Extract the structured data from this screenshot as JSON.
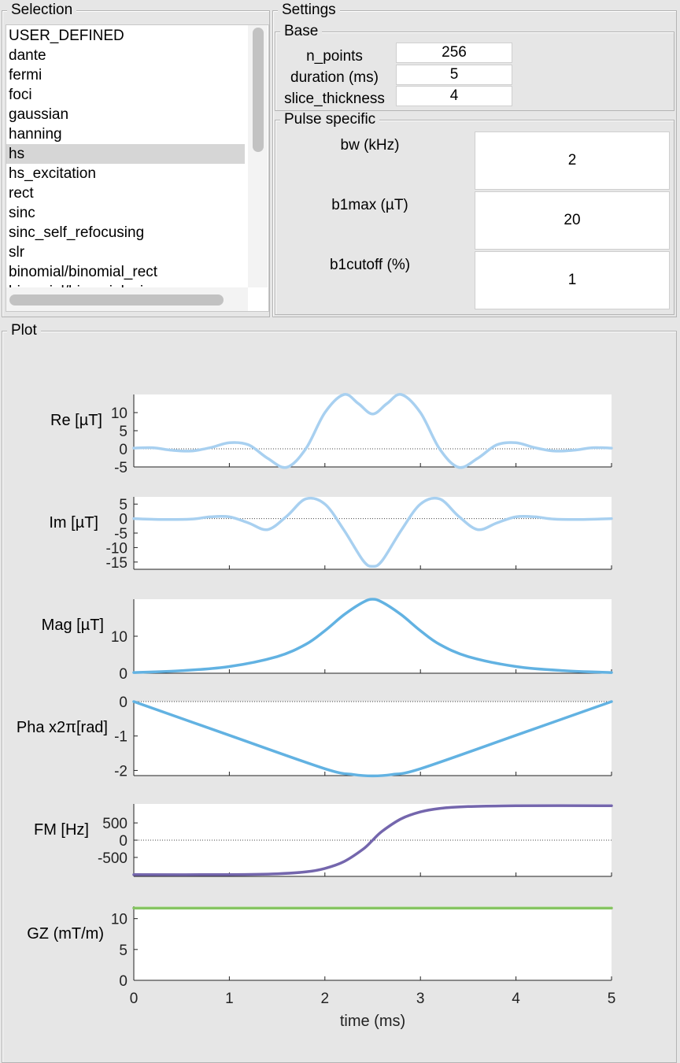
{
  "selection": {
    "title": "Selection",
    "items": [
      "USER_DEFINED",
      "dante",
      "fermi",
      "foci",
      "gaussian",
      "hanning",
      "hs",
      "hs_excitation",
      "rect",
      "sinc",
      "sinc_self_refocusing",
      "slr",
      "binomial/binomial_rect",
      "binomial/binomial_sinc"
    ],
    "selected": "hs"
  },
  "settings": {
    "title": "Settings",
    "base": {
      "title": "Base",
      "n_points_label": "n_points",
      "n_points": "256",
      "duration_label": "duration (ms)",
      "duration": "5",
      "slice_thickness_label": "slice_thickness",
      "slice_thickness": "4"
    },
    "pulse": {
      "title": "Pulse specific",
      "bw_label": "bw (kHz)",
      "bw": "2",
      "b1max_label": "b1max (µT)",
      "b1max": "20",
      "b1cutoff_label": "b1cutoff (%)",
      "b1cutoff": "1"
    }
  },
  "plot": {
    "title": "Plot",
    "xlabel": "time (ms)"
  },
  "colors": {
    "re_im": "#a8d0f0",
    "mag_pha": "#62b2e2",
    "fm": "#7466ad",
    "gz": "#86c462"
  },
  "chart_data": [
    {
      "type": "line",
      "ylabel": "Re [µT]",
      "xlim": [
        0,
        5
      ],
      "ylim": [
        -5,
        15
      ],
      "yticks": [
        -5,
        0,
        5,
        10
      ],
      "zero_line": true,
      "x": [
        0,
        0.2,
        0.4,
        0.6,
        0.8,
        1.0,
        1.2,
        1.4,
        1.6,
        1.8,
        2.0,
        2.2,
        2.35,
        2.5,
        2.65,
        2.8,
        3.0,
        3.2,
        3.4,
        3.6,
        3.8,
        4.0,
        4.2,
        4.4,
        4.6,
        4.8,
        5.0
      ],
      "values": [
        0.2,
        0.3,
        -0.4,
        -0.6,
        0.3,
        1.7,
        1.1,
        -2.6,
        -5.1,
        0.0,
        10.0,
        15.0,
        12.5,
        9.6,
        12.5,
        15.0,
        10.0,
        0.0,
        -5.1,
        -2.6,
        1.1,
        1.7,
        0.3,
        -0.6,
        -0.4,
        0.3,
        0.2
      ]
    },
    {
      "type": "line",
      "ylabel": "Im [µT]",
      "xlim": [
        0,
        5
      ],
      "ylim": [
        -17.5,
        7.5
      ],
      "yticks": [
        -15,
        -10,
        -5,
        0,
        5
      ],
      "zero_line": true,
      "x": [
        0,
        0.3,
        0.6,
        0.8,
        1.0,
        1.2,
        1.4,
        1.6,
        1.8,
        2.0,
        2.2,
        2.4,
        2.5,
        2.6,
        2.8,
        3.0,
        3.2,
        3.4,
        3.6,
        3.8,
        4.0,
        4.2,
        4.4,
        4.7,
        5.0
      ],
      "values": [
        0,
        -0.3,
        -0.2,
        0.6,
        0.6,
        -1.5,
        -3.8,
        0.8,
        6.8,
        5.0,
        -4.0,
        -14.5,
        -16.5,
        -14.5,
        -4.0,
        5.0,
        6.8,
        0.8,
        -3.8,
        -1.5,
        0.6,
        0.6,
        -0.2,
        -0.3,
        0
      ]
    },
    {
      "type": "line",
      "ylabel": "Mag [µT]",
      "xlim": [
        0,
        5
      ],
      "ylim": [
        0,
        20
      ],
      "yticks": [
        0,
        10
      ],
      "zero_line": false,
      "x": [
        0,
        0.5,
        1.0,
        1.5,
        1.8,
        2.0,
        2.2,
        2.4,
        2.5,
        2.6,
        2.8,
        3.0,
        3.2,
        3.5,
        4.0,
        4.5,
        5.0
      ],
      "values": [
        0.2,
        0.7,
        1.8,
        4.5,
        7.8,
        11.5,
        15.8,
        19.2,
        20,
        19.2,
        15.8,
        11.5,
        7.8,
        4.5,
        1.8,
        0.7,
        0.2
      ]
    },
    {
      "type": "line",
      "ylabel": "Pha x2π[rad]",
      "xlim": [
        0,
        5
      ],
      "ylim": [
        -2.15,
        0
      ],
      "yticks": [
        -2,
        -1,
        0
      ],
      "zero_line": true,
      "x": [
        0,
        1.0,
        2.0,
        2.3,
        2.5,
        2.7,
        3.0,
        4.0,
        5.0
      ],
      "values": [
        0,
        -0.98,
        -1.95,
        -2.12,
        -2.16,
        -2.12,
        -1.95,
        -0.98,
        0
      ]
    },
    {
      "type": "line",
      "ylabel": "FM [Hz]",
      "xlim": [
        0,
        5
      ],
      "ylim": [
        -1050,
        1050
      ],
      "yticks": [
        -500,
        0,
        500
      ],
      "zero_line": true,
      "x": [
        0,
        1.0,
        1.5,
        1.8,
        2.0,
        2.2,
        2.4,
        2.5,
        2.6,
        2.8,
        3.0,
        3.2,
        3.5,
        4.0,
        5.0
      ],
      "values": [
        -1000,
        -998,
        -975,
        -920,
        -820,
        -620,
        -260,
        0,
        260,
        620,
        820,
        920,
        975,
        998,
        1000
      ]
    },
    {
      "type": "line",
      "ylabel": "GZ (mT/m)",
      "xlabel": "time (ms)",
      "xlim": [
        0,
        5
      ],
      "ylim": [
        0,
        12
      ],
      "yticks": [
        0,
        5,
        10
      ],
      "xticks": [
        0,
        1,
        2,
        3,
        4,
        5
      ],
      "zero_line": false,
      "x": [
        0,
        5
      ],
      "values": [
        11.7,
        11.7
      ]
    }
  ]
}
